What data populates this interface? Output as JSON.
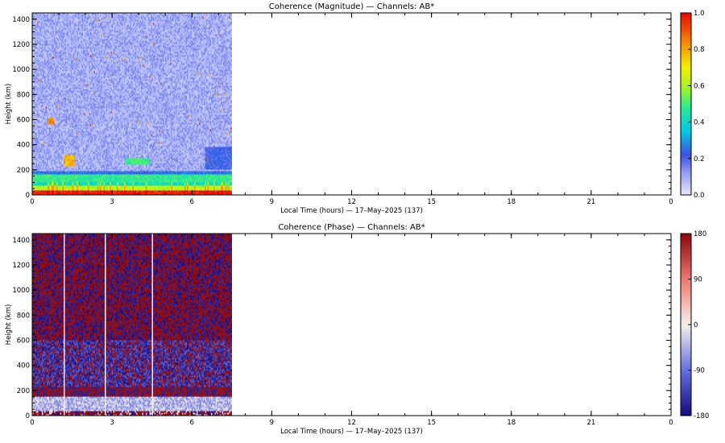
{
  "chart_data": [
    {
      "type": "heatmap",
      "title": "Coherence (Magnitude) — Channels: AB*",
      "xlabel": "Local Time (hours) — 17–May–2025 (137)",
      "ylabel": "Height (km)",
      "xlim": [
        0,
        24
      ],
      "ylim": [
        0,
        1450
      ],
      "x_ticks": [
        "0",
        "3",
        "6",
        "9",
        "12",
        "15",
        "18",
        "21",
        "0"
      ],
      "y_ticks": [
        "0",
        "200",
        "400",
        "600",
        "800",
        "1000",
        "1200",
        "1400"
      ],
      "data_extent_hours": [
        0,
        7.5
      ],
      "colorbar": {
        "colormap": "rainbow",
        "range": [
          0.0,
          1.0
        ],
        "tick_labels": [
          "0.0",
          "0.2",
          "0.4",
          "0.6",
          "0.8",
          "1.0"
        ]
      },
      "bands": [
        {
          "height_range_km": [
            0,
            40
          ],
          "hours": [
            0,
            7.5
          ],
          "level": 0.97
        },
        {
          "height_range_km": [
            40,
            75
          ],
          "hours": [
            0,
            7.5
          ],
          "level": 0.62
        },
        {
          "height_range_km": [
            75,
            100
          ],
          "hours": [
            0,
            7.5
          ],
          "level": 0.42
        },
        {
          "height_range_km": [
            100,
            170
          ],
          "hours": [
            0,
            7.5
          ],
          "level": 0.48
        },
        {
          "height_range_km": [
            170,
            190
          ],
          "hours": [
            0,
            7.5
          ],
          "level": 0.25
        },
        {
          "height_range_km": [
            200,
            380
          ],
          "hours": [
            6.5,
            7.5
          ],
          "level": 0.22
        },
        {
          "height_range_km": [
            190,
            1450
          ],
          "hours": [
            0,
            7.5
          ],
          "level": 0.1
        }
      ],
      "features": [
        {
          "height_range_km": [
            230,
            320
          ],
          "hours": [
            1.2,
            1.6
          ],
          "level": 0.78
        },
        {
          "height_range_km": [
            240,
            300
          ],
          "hours": [
            3.5,
            4.4
          ],
          "level": 0.5
        },
        {
          "height_range_km": [
            560,
            620
          ],
          "hours": [
            0.6,
            0.8
          ],
          "level": 0.85
        }
      ]
    },
    {
      "type": "heatmap",
      "title": "Coherence (Phase) — Channels: AB*",
      "xlabel": "Local Time (hours) — 17–May–2025 (137)",
      "ylabel": "Height (km)",
      "xlim": [
        0,
        24
      ],
      "ylim": [
        0,
        1450
      ],
      "x_ticks": [
        "0",
        "3",
        "6",
        "9",
        "12",
        "15",
        "18",
        "21",
        "0"
      ],
      "y_ticks": [
        "0",
        "200",
        "400",
        "600",
        "800",
        "1000",
        "1200",
        "1400"
      ],
      "data_extent_hours": [
        0,
        7.5
      ],
      "colorbar": {
        "colormap": "blue-white-red",
        "range": [
          -180,
          180
        ],
        "tick_labels": [
          "-180",
          "-90",
          "0",
          "90",
          "180"
        ]
      },
      "bands": [
        {
          "height_range_km": [
            0,
            40
          ],
          "hours": [
            0,
            7.5
          ],
          "level": 90
        },
        {
          "height_range_km": [
            40,
            160
          ],
          "hours": [
            0,
            7.5
          ],
          "level": -30
        },
        {
          "height_range_km": [
            160,
            230
          ],
          "hours": [
            0,
            7.5
          ],
          "level": 170
        },
        {
          "height_range_km": [
            230,
            600
          ],
          "hours": [
            0,
            7.5
          ],
          "level": -120
        },
        {
          "height_range_km": [
            600,
            1450
          ],
          "hours": [
            0,
            7.5
          ],
          "level": 180
        }
      ],
      "features": []
    }
  ]
}
